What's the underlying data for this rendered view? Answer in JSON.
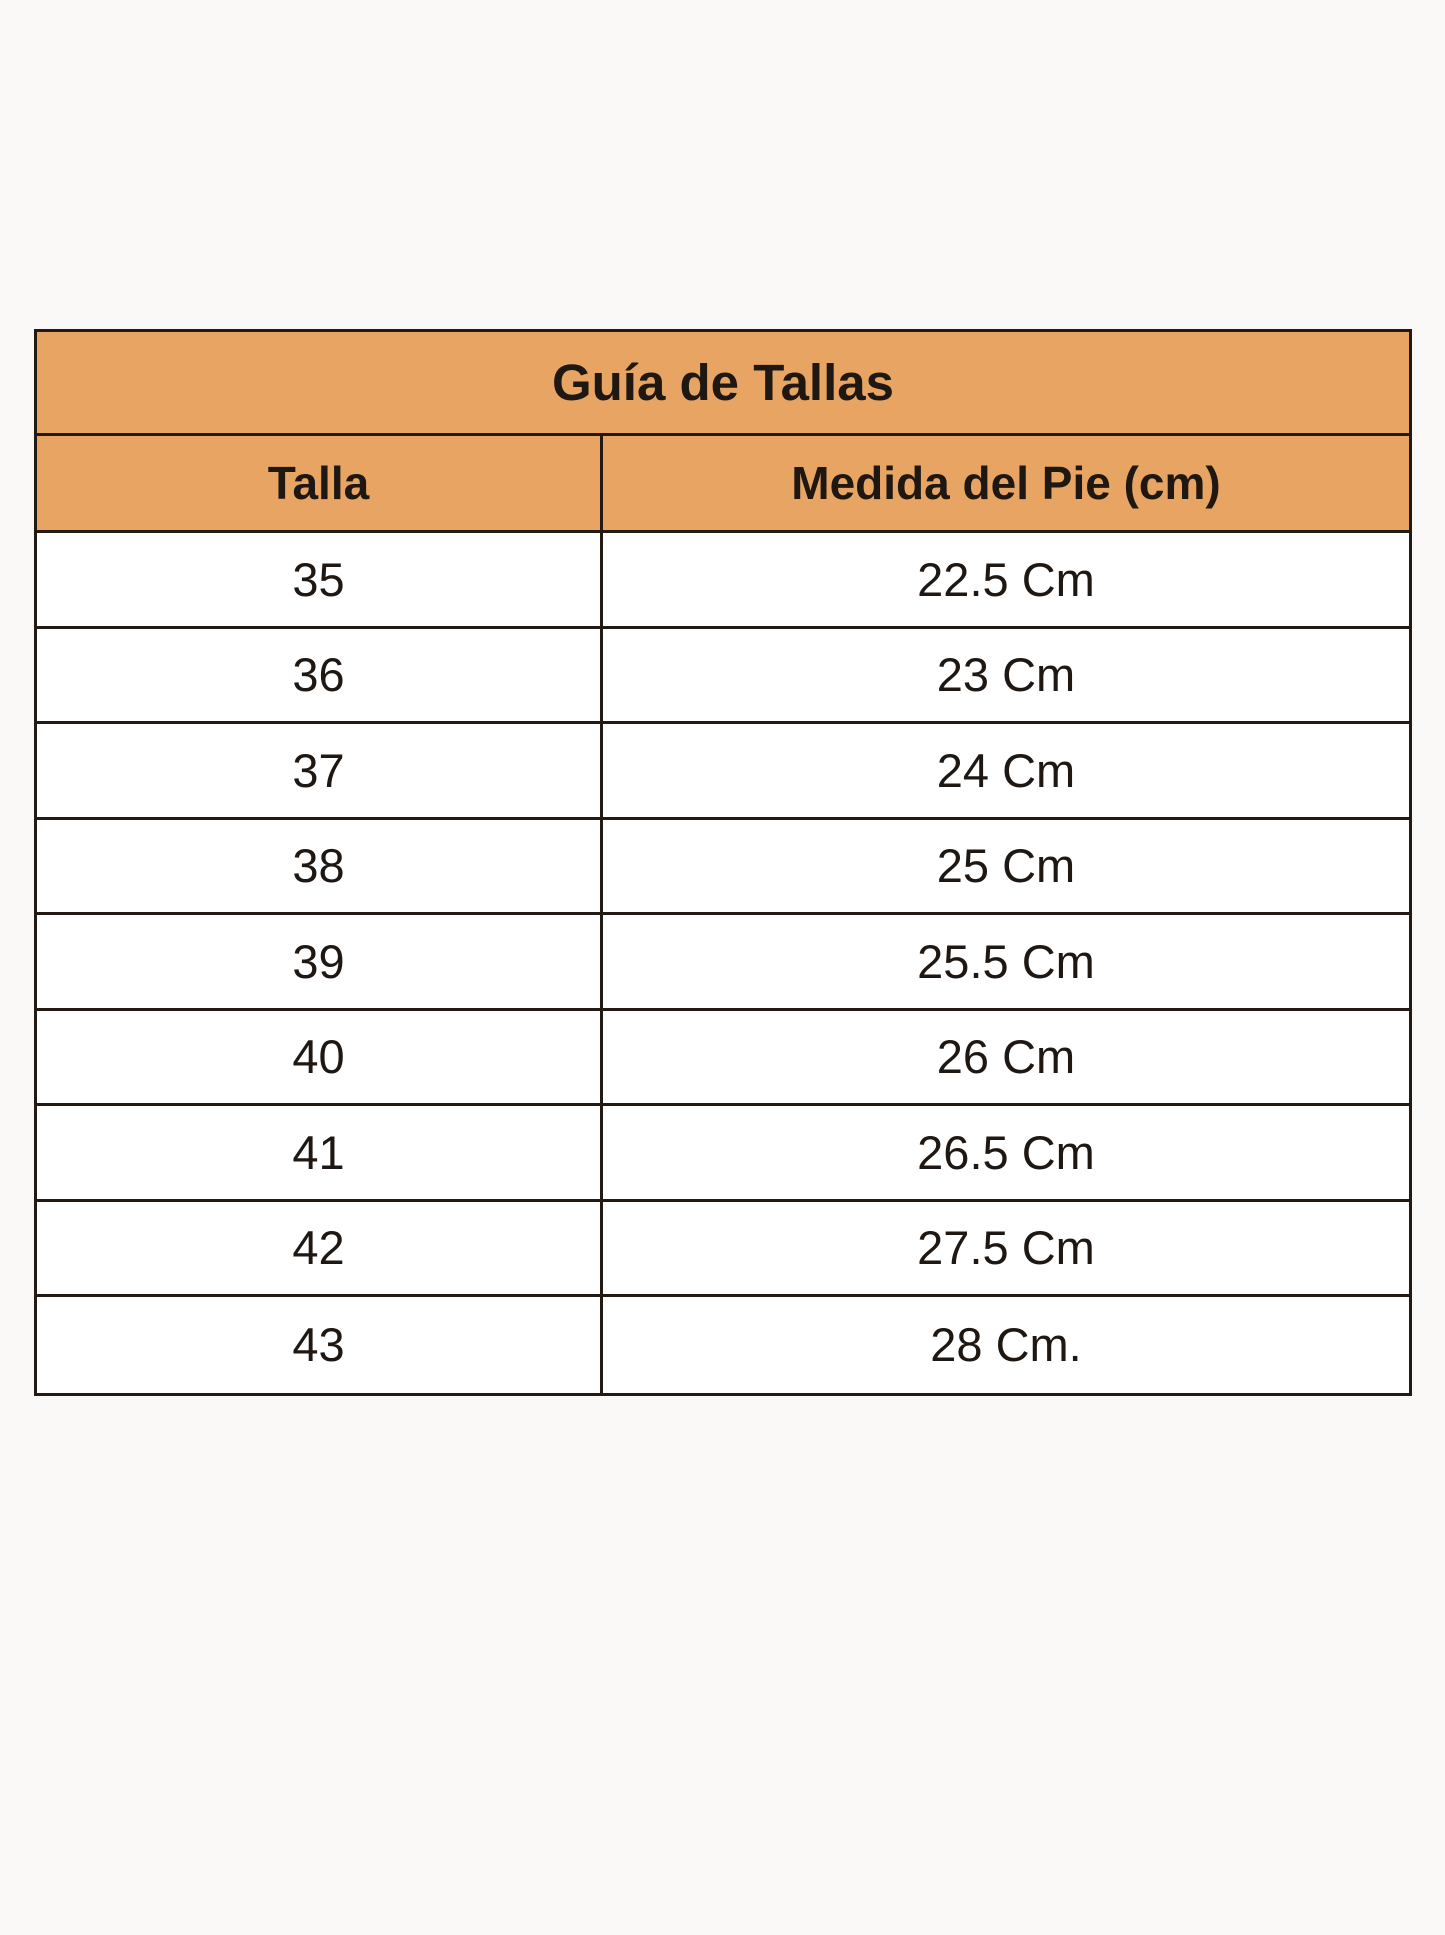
{
  "table": {
    "title": "Guía de Tallas",
    "colors": {
      "header_bg": "#e8a462",
      "border": "#241a14"
    },
    "headers": [
      "Talla",
      "Medida del Pie (cm)"
    ],
    "rows": [
      [
        "35",
        "22.5 Cm"
      ],
      [
        "36",
        "23 Cm"
      ],
      [
        "37",
        "24 Cm"
      ],
      [
        "38",
        "25 Cm"
      ],
      [
        "39",
        "25.5 Cm"
      ],
      [
        "40",
        "26 Cm"
      ],
      [
        "41",
        "26.5 Cm"
      ],
      [
        "42",
        "27.5 Cm"
      ],
      [
        "43",
        "28 Cm."
      ]
    ]
  }
}
